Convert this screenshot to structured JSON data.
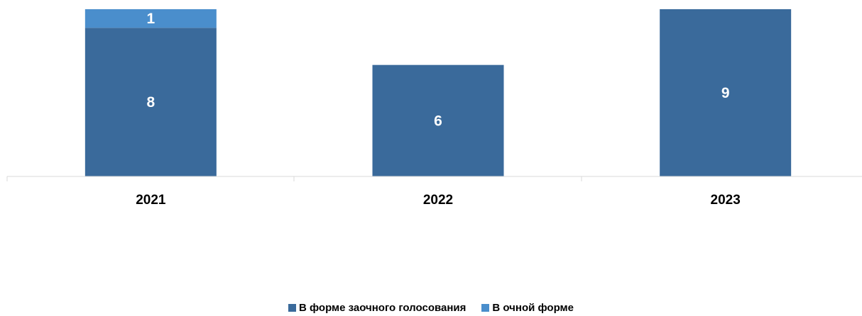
{
  "chart_data": {
    "type": "bar",
    "stacked": true,
    "categories": [
      "2021",
      "2022",
      "2023"
    ],
    "series": [
      {
        "name": "В форме заочного голосования",
        "values": [
          8,
          6,
          9
        ],
        "color": "#3A6A9B"
      },
      {
        "name": "В очной форме",
        "values": [
          1,
          0,
          0
        ],
        "color": "#4A8ECC"
      }
    ],
    "ylim": [
      0,
      9
    ],
    "grid": false,
    "legend_position": "bottom"
  }
}
